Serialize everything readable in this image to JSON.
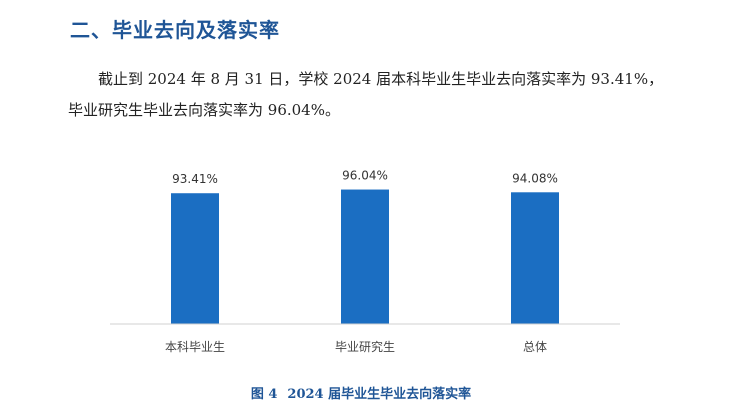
{
  "section": {
    "heading": "二、毕业去向及落实率"
  },
  "paragraph": {
    "line1": "截止到 2024 年 8 月 31 日，学校 2024 届本科毕业生毕业去向落实率为 93.41%，",
    "line2": "毕业研究生毕业去向落实率为 96.04%。"
  },
  "figure": {
    "number": "图 4",
    "title": "2024 届毕业生毕业去向落实率"
  },
  "chart_data": {
    "type": "bar",
    "categories": [
      "本科毕业生",
      "毕业研究生",
      "总体"
    ],
    "values": [
      93.41,
      96.04,
      94.08
    ],
    "value_labels": [
      "93.41%",
      "96.04%",
      "94.08%"
    ],
    "title": "",
    "xlabel": "",
    "ylabel": "",
    "ylim": [
      0,
      100
    ],
    "grid": false,
    "legend": "none",
    "bar_color": "#1b6ec2"
  }
}
